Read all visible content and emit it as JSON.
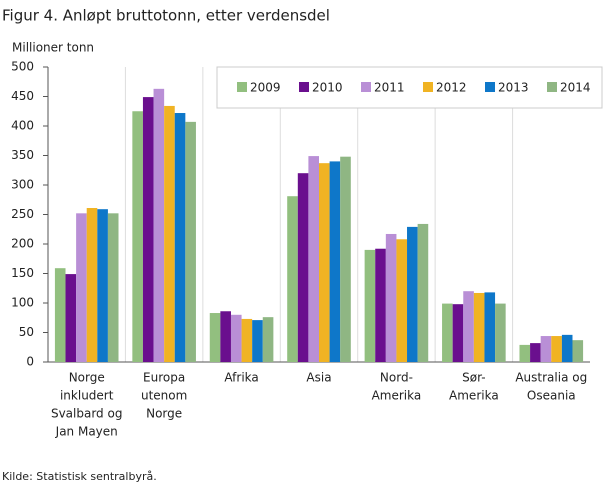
{
  "chart_data": {
    "type": "bar",
    "title": "Figur 4. Anløpt bruttotonn, etter verdensdel",
    "y_label": "Millioner  tonn",
    "source": "Kilde: Statistisk sentralbyrå.",
    "categories": [
      [
        "Norge",
        "inkludert",
        "Svalbard og",
        "Jan Mayen"
      ],
      [
        "Europa",
        "utenom",
        "Norge"
      ],
      [
        "Afrika"
      ],
      [
        "Asia"
      ],
      [
        "Nord-",
        "Amerika"
      ],
      [
        "Sør-",
        "Amerika"
      ],
      [
        "Australia og",
        "Oseania"
      ]
    ],
    "series": [
      {
        "name": "2009",
        "color": "#92bf7f",
        "values": [
          159,
          425,
          83,
          281,
          190,
          99,
          29
        ]
      },
      {
        "name": "2010",
        "color": "#6a0f8e",
        "values": [
          149,
          449,
          86,
          320,
          192,
          98,
          32
        ]
      },
      {
        "name": "2011",
        "color": "#b98fd6",
        "values": [
          252,
          463,
          80,
          349,
          217,
          120,
          44
        ]
      },
      {
        "name": "2012",
        "color": "#f0b323",
        "values": [
          261,
          434,
          73,
          337,
          208,
          117,
          44
        ]
      },
      {
        "name": "2013",
        "color": "#0e77c9",
        "values": [
          259,
          422,
          71,
          340,
          229,
          118,
          46
        ]
      },
      {
        "name": "2014",
        "color": "#8fb683",
        "values": [
          252,
          407,
          76,
          348,
          234,
          99,
          37
        ]
      }
    ],
    "ylim": [
      0,
      500
    ],
    "yticks": [
      0,
      50,
      100,
      150,
      200,
      250,
      300,
      350,
      400,
      450,
      500
    ],
    "grid": true,
    "legend": "top-right"
  }
}
